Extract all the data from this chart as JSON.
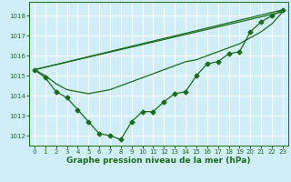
{
  "xlabel": "Graphe pression niveau de la mer (hPa)",
  "xlim": [
    -0.5,
    23.5
  ],
  "ylim": [
    1011.5,
    1018.7
  ],
  "yticks": [
    1012,
    1013,
    1014,
    1015,
    1016,
    1017,
    1018
  ],
  "xticks": [
    0,
    1,
    2,
    3,
    4,
    5,
    6,
    7,
    8,
    9,
    10,
    11,
    12,
    13,
    14,
    15,
    16,
    17,
    18,
    19,
    20,
    21,
    22,
    23
  ],
  "bg_color": "#d0eef8",
  "grid_color": "#ffffff",
  "line_color": "#1a6b1a",
  "line1_x": [
    0,
    1,
    2,
    3,
    4,
    5,
    6,
    7,
    8,
    9,
    10,
    11,
    12,
    13,
    14,
    15,
    16,
    17,
    18,
    19,
    20,
    21,
    22,
    23
  ],
  "line1_y": [
    1015.3,
    1014.9,
    1014.2,
    1013.9,
    1013.3,
    1012.7,
    1012.1,
    1012.0,
    1011.8,
    1012.7,
    1013.2,
    1013.2,
    1013.7,
    1014.1,
    1014.2,
    1015.0,
    1015.6,
    1015.7,
    1016.1,
    1016.2,
    1017.2,
    1017.7,
    1018.0,
    1018.3
  ],
  "line2_x": [
    0,
    23
  ],
  "line2_y": [
    1015.3,
    1018.3
  ],
  "line3_x": [
    0,
    23
  ],
  "line3_y": [
    1015.3,
    1018.3
  ],
  "line4_x": [
    0,
    1,
    2,
    3,
    4,
    5,
    6,
    7,
    8,
    9,
    10,
    11,
    12,
    13,
    14,
    15,
    16,
    17,
    18,
    19,
    20,
    21,
    22,
    23
  ],
  "line4_y": [
    1015.3,
    1015.0,
    1014.6,
    1014.3,
    1014.2,
    1014.1,
    1014.2,
    1014.3,
    1014.5,
    1014.7,
    1014.9,
    1015.1,
    1015.3,
    1015.5,
    1015.7,
    1015.8,
    1016.0,
    1016.2,
    1016.4,
    1016.6,
    1016.9,
    1017.2,
    1017.6,
    1018.2
  ]
}
